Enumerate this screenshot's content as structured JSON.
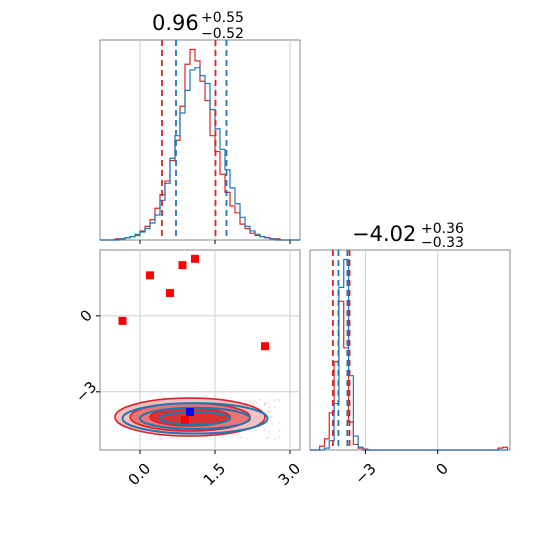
{
  "colors": {
    "red": "#d62728",
    "blue": "#1f77b4",
    "fill_red": "#f4a6a6",
    "grid": "#cccccc",
    "marker_blue": "#0000ff",
    "marker_red": "#ff0000"
  },
  "chart_data": [
    {
      "type": "histogram",
      "panel": "top-left",
      "title": {
        "value": "0.96",
        "plus": "+0.55",
        "minus": "−0.52"
      },
      "xlim": [
        -0.8,
        3.2
      ],
      "grid": true,
      "quantile_lines_red": [
        0.44,
        1.51
      ],
      "quantile_lines_blue": [
        0.72,
        1.73
      ],
      "series": [
        {
          "color": "red",
          "bin_edges": [
            -0.8,
            -0.7,
            -0.6,
            -0.5,
            -0.4,
            -0.3,
            -0.2,
            -0.1,
            0.0,
            0.1,
            0.2,
            0.3,
            0.4,
            0.5,
            0.6,
            0.7,
            0.8,
            0.9,
            1.0,
            1.1,
            1.2,
            1.3,
            1.4,
            1.5,
            1.6,
            1.7,
            1.8,
            1.9,
            2.0,
            2.1,
            2.2,
            2.3,
            2.4,
            2.5,
            2.6,
            2.7,
            2.8,
            2.9,
            3.0,
            3.1,
            3.2
          ],
          "counts": [
            0,
            0,
            0,
            1,
            1,
            2,
            3,
            4,
            8,
            12,
            18,
            28,
            40,
            52,
            70,
            88,
            118,
            155,
            168,
            158,
            140,
            123,
            92,
            78,
            58,
            42,
            30,
            24,
            14,
            10,
            6,
            4,
            3,
            2,
            1,
            1,
            0,
            0,
            0,
            0
          ]
        },
        {
          "color": "blue",
          "bin_edges": [
            -0.8,
            -0.7,
            -0.6,
            -0.5,
            -0.4,
            -0.3,
            -0.2,
            -0.1,
            0.0,
            0.1,
            0.2,
            0.3,
            0.4,
            0.5,
            0.6,
            0.7,
            0.8,
            0.9,
            1.0,
            1.1,
            1.2,
            1.3,
            1.4,
            1.5,
            1.6,
            1.7,
            1.8,
            1.9,
            2.0,
            2.1,
            2.2,
            2.3,
            2.4,
            2.5,
            2.6,
            2.7,
            2.8,
            2.9,
            3.0,
            3.1,
            3.2
          ],
          "counts": [
            0,
            0,
            0,
            0,
            1,
            2,
            3,
            5,
            7,
            10,
            15,
            22,
            35,
            50,
            72,
            92,
            112,
            132,
            150,
            152,
            145,
            138,
            115,
            98,
            80,
            62,
            46,
            32,
            20,
            12,
            8,
            5,
            3,
            2,
            1,
            0,
            0,
            0,
            0,
            0
          ]
        }
      ]
    },
    {
      "type": "histogram",
      "panel": "bottom-right",
      "title": {
        "value": "−4.02",
        "plus": "+0.36",
        "minus": "−0.33"
      },
      "xlim": [
        -5.3,
        3.0
      ],
      "xticks": [
        -3,
        0
      ],
      "xtick_labels": [
        "−3",
        "0"
      ],
      "grid": true,
      "quantile_lines_red": [
        -4.35,
        -3.66
      ],
      "quantile_lines_blue": [
        -4.12,
        -3.75
      ],
      "series": [
        {
          "color": "red",
          "bin_edges": [
            -5.3,
            -5.1,
            -4.9,
            -4.7,
            -4.5,
            -4.3,
            -4.1,
            -3.9,
            -3.7,
            -3.5,
            -3.3,
            -3.1,
            -2.9,
            -2.7,
            -2.5,
            -2.3,
            -2.1,
            -1.9,
            -1.7,
            -1.5,
            -1.3,
            -1.1,
            -0.9,
            -0.7,
            -0.5,
            -0.3,
            -0.1,
            0.1,
            0.3,
            0.5,
            0.7,
            0.9,
            1.1,
            1.3,
            1.5,
            1.7,
            1.9,
            2.1,
            2.3,
            2.5,
            2.7,
            2.9
          ],
          "counts": [
            0,
            0,
            4,
            12,
            40,
            95,
            160,
            110,
            30,
            6,
            2,
            1,
            0,
            0,
            0,
            0,
            0,
            0,
            0,
            0,
            0,
            0,
            0,
            0,
            0,
            0,
            0,
            0,
            0,
            0,
            0,
            0,
            0,
            0,
            0,
            0,
            0,
            0,
            0,
            2,
            3
          ]
        },
        {
          "color": "blue",
          "bin_edges": [
            -5.3,
            -5.1,
            -4.9,
            -4.7,
            -4.5,
            -4.3,
            -4.1,
            -3.9,
            -3.7,
            -3.5,
            -3.3,
            -3.1,
            -2.9,
            -2.7,
            -2.5,
            -2.3,
            -2.1,
            -1.9,
            -1.7,
            -1.5,
            -1.3,
            -1.1,
            -0.9,
            -0.7,
            -0.5,
            -0.3,
            -0.1,
            0.1,
            0.3,
            0.5,
            0.7,
            0.9,
            1.1,
            1.3,
            1.5,
            1.7,
            1.9,
            2.1,
            2.3,
            2.5,
            2.7,
            2.9
          ],
          "counts": [
            0,
            0,
            0,
            2,
            10,
            50,
            175,
            205,
            80,
            15,
            3,
            0,
            0,
            0,
            0,
            0,
            0,
            0,
            0,
            0,
            0,
            0,
            0,
            0,
            0,
            0,
            0,
            0,
            0,
            0,
            0,
            0,
            0,
            0,
            0,
            0,
            0,
            0,
            0,
            0,
            0
          ]
        }
      ]
    },
    {
      "type": "scatter",
      "panel": "bottom-left",
      "xlim": [
        -0.8,
        3.2
      ],
      "ylim": [
        -5.3,
        2.6
      ],
      "xticks": [
        0.0,
        1.5,
        3.0
      ],
      "xtick_labels": [
        "0.0",
        "1.5",
        "3.0"
      ],
      "yticks": [
        -3,
        0
      ],
      "ytick_labels": [
        "−3",
        "0"
      ],
      "grid": true,
      "red_contours": {
        "center": [
          1.0,
          -4.0
        ],
        "levels": [
          {
            "rx": 1.5,
            "ry": 0.75
          },
          {
            "rx": 1.2,
            "ry": 0.55
          },
          {
            "rx": 0.8,
            "ry": 0.35
          }
        ]
      },
      "blue_contours": {
        "center": [
          1.1,
          -4.05
        ],
        "levels": [
          {
            "rx": 1.45,
            "ry": 0.6
          },
          {
            "rx": 1.1,
            "ry": 0.42
          },
          {
            "rx": 0.7,
            "ry": 0.25
          }
        ]
      },
      "red_markers": [
        {
          "x": -0.35,
          "y": -0.2
        },
        {
          "x": 0.2,
          "y": 1.6
        },
        {
          "x": 0.6,
          "y": 0.9
        },
        {
          "x": 0.85,
          "y": 2.0
        },
        {
          "x": 1.1,
          "y": 2.25
        },
        {
          "x": 2.5,
          "y": -1.2
        },
        {
          "x": 0.9,
          "y": -4.1
        }
      ],
      "blue_markers": [
        {
          "x": 1.0,
          "y": -3.8
        }
      ]
    }
  ]
}
